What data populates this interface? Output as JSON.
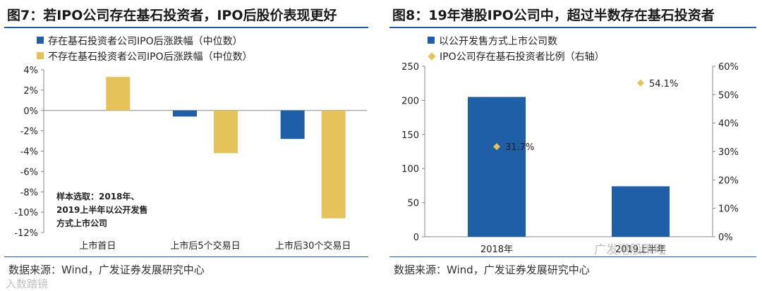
{
  "left": {
    "title": "图7：若IPO公司存在基石投资者，IPO后股价表现更好",
    "note": "样本选取：2018年、2019上半年以公开发售方式上市公司",
    "source": "数据来源：Wind，广发证券发展研究中心",
    "watermark": "入数踏镜"
  },
  "right": {
    "title": "图8：19年港股IPO公司中，超过半数存在基石投资者",
    "source": "数据来源：Wind，广发证券发展研究中心",
    "watermark": "广发港股策略"
  },
  "colors": {
    "blue": "#1f5fa8",
    "yellow": "#e6c35a",
    "diamond": "#e6c35a",
    "axis": "#888888"
  },
  "chart_data": [
    {
      "type": "bar",
      "categories": [
        "上市首日",
        "上市后5个交易日",
        "上市后30个交易日"
      ],
      "series": [
        {
          "name": "存在基石投资者公司IPO后涨跌幅（中位数）",
          "values": [
            0.0,
            -0.6,
            -2.8
          ]
        },
        {
          "name": "不存在基石投资者公司IPO后涨跌幅（中位数）",
          "values": [
            3.3,
            -4.2,
            -10.6
          ]
        }
      ],
      "ylim": [
        -12,
        4
      ],
      "yticks": [
        "4%",
        "2%",
        "0%",
        "-2%",
        "-4%",
        "-6%",
        "-8%",
        "-10%",
        "-12%"
      ],
      "ytick_values": [
        4,
        2,
        0,
        -2,
        -4,
        -6,
        -8,
        -10,
        -12
      ],
      "legend_position": "top-left"
    },
    {
      "type": "bar",
      "categories": [
        "2018年",
        "2019上半年"
      ],
      "series": [
        {
          "name": "以公开发售方式上市公司数",
          "values": [
            205,
            74
          ],
          "axis": "left"
        },
        {
          "name": "IPO公司存在基石投资者比例（右轴）",
          "values": [
            31.7,
            54.1
          ],
          "axis": "right",
          "marker": "diamond",
          "labels": [
            "31.7%",
            "54.1%"
          ]
        }
      ],
      "ylim": [
        0,
        250
      ],
      "yticks": [
        "250",
        "200",
        "150",
        "100",
        "50",
        "0"
      ],
      "ytick_values": [
        250,
        200,
        150,
        100,
        50,
        0
      ],
      "y2lim": [
        0,
        60
      ],
      "y2ticks": [
        "60%",
        "50%",
        "40%",
        "30%",
        "20%",
        "10%",
        "0%"
      ],
      "y2tick_values": [
        60,
        50,
        40,
        30,
        20,
        10,
        0
      ],
      "legend_position": "top-left"
    }
  ]
}
